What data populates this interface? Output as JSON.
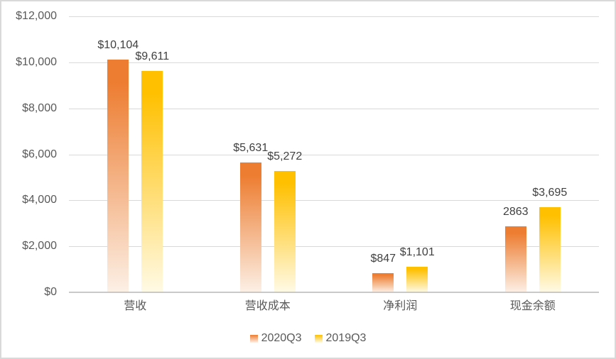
{
  "chart_data": {
    "type": "bar",
    "title": "",
    "categories": [
      "营收",
      "营收成本",
      "净利润",
      "现金余额"
    ],
    "series": [
      {
        "name": "2020Q3",
        "values": [
          10104,
          5631,
          847,
          2863
        ],
        "data_labels": [
          "$10,104",
          "$5,631",
          "$847",
          "2863"
        ],
        "color": "#ED7D31",
        "color_fade": "#FCF0E6"
      },
      {
        "name": "2019Q3",
        "values": [
          9611,
          5272,
          1101,
          3695
        ],
        "data_labels": [
          "$9,611",
          "$5,272",
          "$1,101",
          "$3,695"
        ],
        "color": "#FFC000",
        "color_fade": "#FFFAE6"
      }
    ],
    "y_axis": {
      "min": 0,
      "max": 12000,
      "step": 2000,
      "tick_labels": [
        "$0",
        "$2,000",
        "$4,000",
        "$6,000",
        "$8,000",
        "$10,000",
        "$12,000"
      ]
    },
    "grid": true,
    "legend_position": "bottom"
  },
  "style_colors": {
    "gridline": "#D9D9D9",
    "axis_line": "#C9C9C9",
    "axis_text": "#595959",
    "data_label_text": "#404040",
    "chart_border": "#D9D9D9"
  }
}
